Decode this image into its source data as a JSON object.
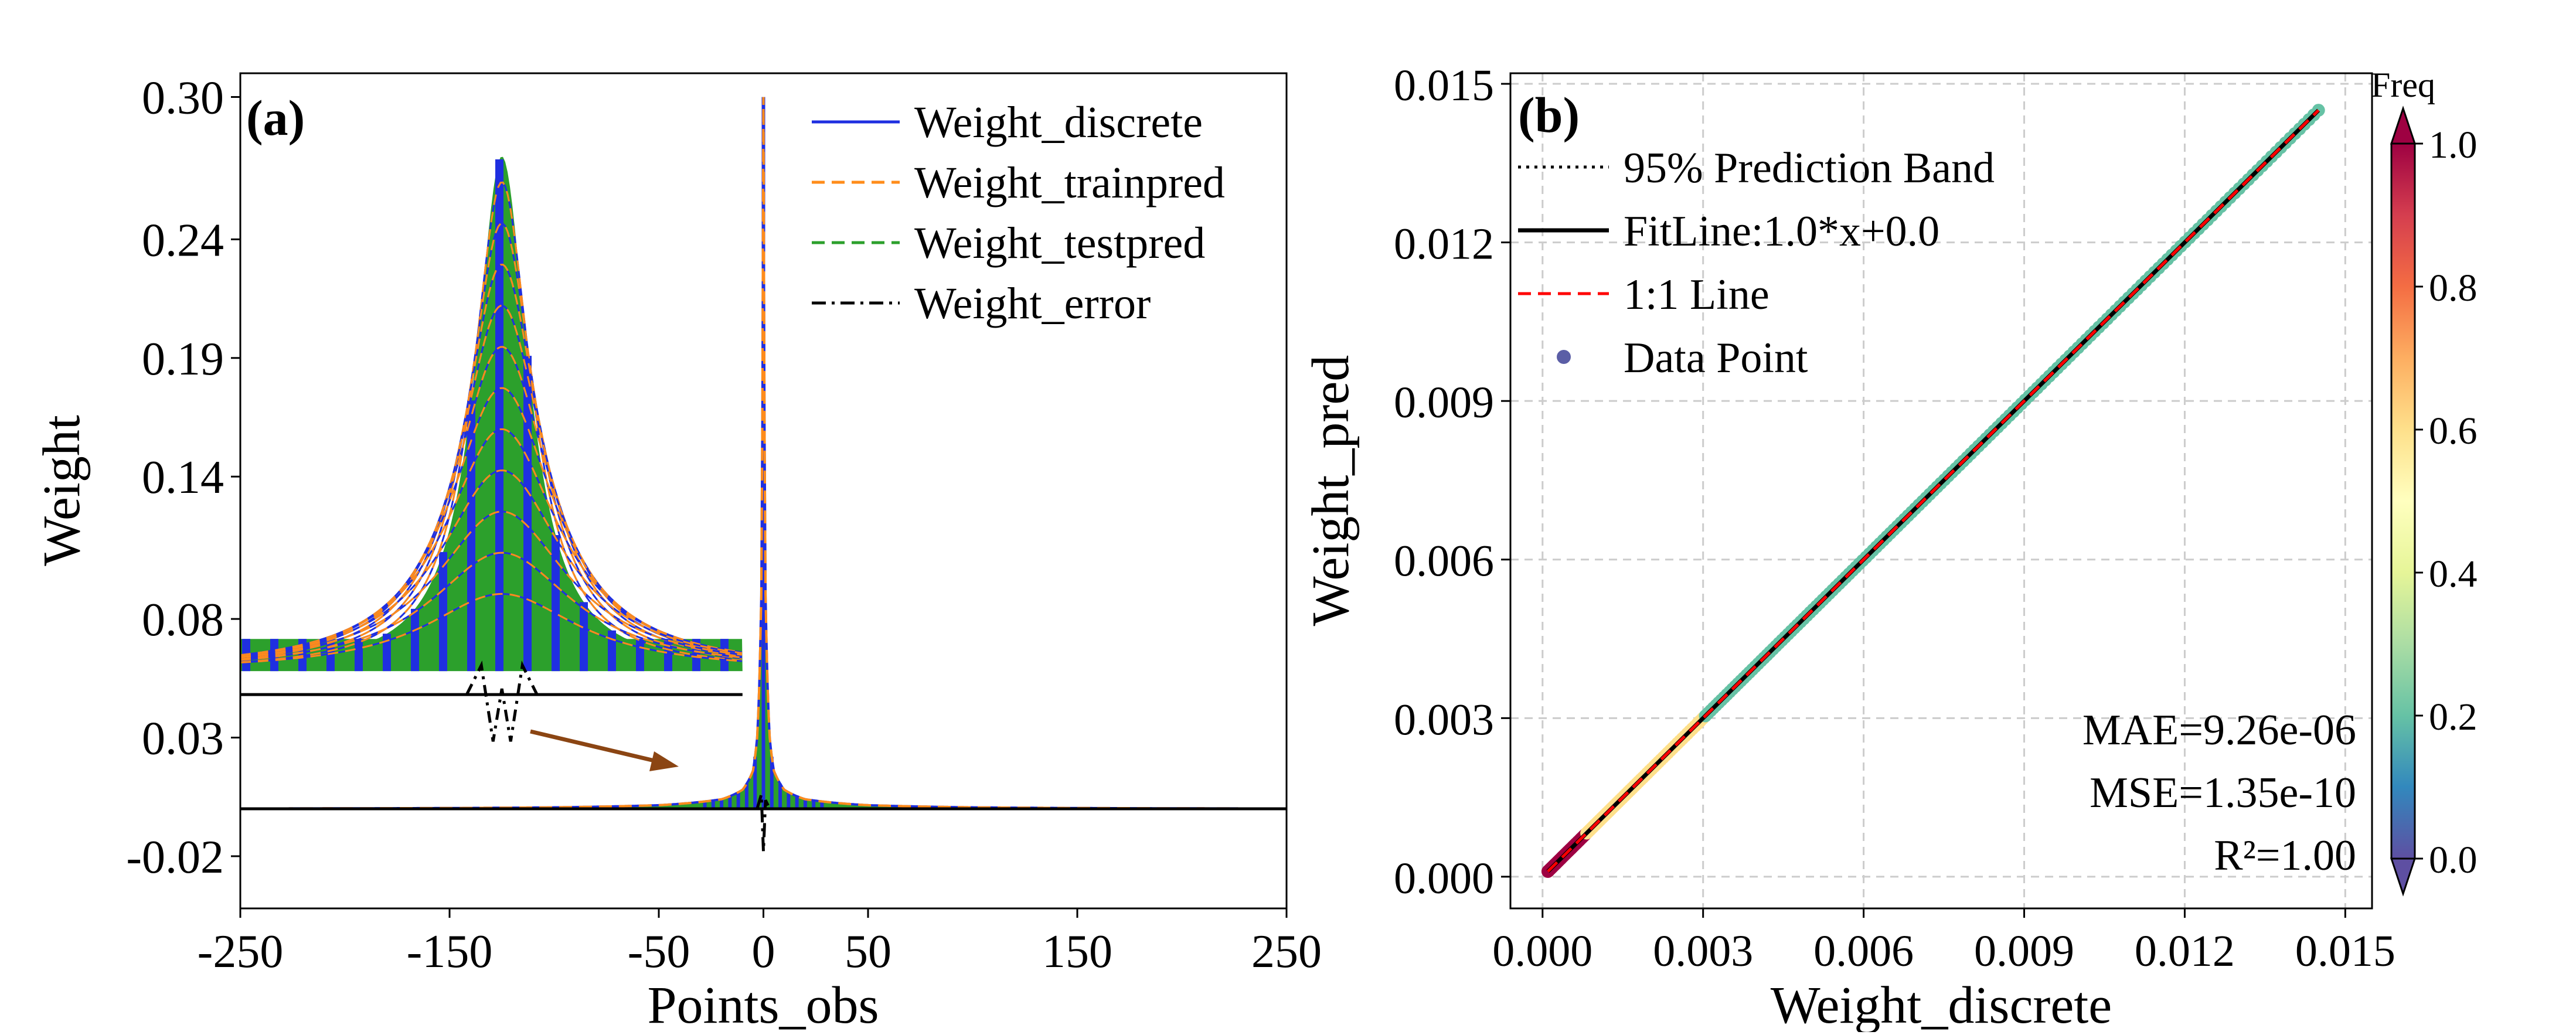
{
  "chart_data": [
    {
      "panel_label": "(a)",
      "type": "line",
      "xlabel": "Points_obs",
      "ylabel": "Weight",
      "xlim": [
        -250,
        250
      ],
      "ylim": [
        -0.042,
        0.31
      ],
      "x_ticks": [
        -250,
        -150,
        -50,
        0,
        50,
        150,
        250
      ],
      "x_tick_labels": [
        "-250",
        "-150",
        "-50",
        "0",
        "50",
        "150",
        "250"
      ],
      "y_ticks": [
        -0.02,
        0.03,
        0.08,
        0.14,
        0.19,
        0.24,
        0.3
      ],
      "y_tick_labels": [
        "-0.02",
        "0.03",
        "0.08",
        "0.14",
        "0.19",
        "0.24",
        "0.30"
      ],
      "grid": false,
      "legend_position": "top-right",
      "legend": [
        {
          "name": "Weight_discrete",
          "color": "#1f2fe0",
          "style": "solid"
        },
        {
          "name": "Weight_trainpred",
          "color": "#ff8c1a",
          "style": "dashed"
        },
        {
          "name": "Weight_testpred",
          "color": "#2ca02c",
          "style": "dashed"
        },
        {
          "name": "Weight_error",
          "color": "#000000",
          "style": "dashdot"
        }
      ],
      "main_series": {
        "x": [
          -250,
          -150,
          -100,
          -50,
          -20,
          -10,
          -5,
          -3,
          -1,
          0,
          1,
          3,
          5,
          10,
          20,
          50,
          100,
          150,
          250
        ],
        "weight": [
          0.0001,
          0.0003,
          0.0006,
          0.0015,
          0.004,
          0.008,
          0.016,
          0.03,
          0.09,
          0.3,
          0.09,
          0.03,
          0.016,
          0.008,
          0.004,
          0.0015,
          0.0006,
          0.0003,
          0.0001
        ],
        "error_spike": {
          "x": 0,
          "min": -0.018,
          "max": 0.006
        }
      },
      "inset": {
        "x_range": [
          -250,
          -10
        ],
        "edge_weight": 0.058,
        "peak_weight": 0.275,
        "peak_x": -125
      }
    },
    {
      "panel_label": "(b)",
      "type": "scatter",
      "xlabel": "Weight_discrete",
      "ylabel": "Weight_pred",
      "xlim": [
        -0.0006,
        0.0155
      ],
      "ylim": [
        -0.0006,
        0.0152
      ],
      "x_ticks": [
        0,
        0.003,
        0.006,
        0.009,
        0.012,
        0.015
      ],
      "x_tick_labels": [
        "0.000",
        "0.003",
        "0.006",
        "0.009",
        "0.012",
        "0.015"
      ],
      "y_ticks": [
        0,
        0.003,
        0.006,
        0.009,
        0.012,
        0.015
      ],
      "y_tick_labels": [
        "0.000",
        "0.003",
        "0.006",
        "0.009",
        "0.012",
        "0.015"
      ],
      "grid": true,
      "legend_position": "top-left",
      "legend": [
        {
          "name": "95% Prediction Band",
          "color": "#000000",
          "style": "dotted"
        },
        {
          "name": "FitLine:1.0*x+0.0",
          "color": "#000000",
          "style": "solid"
        },
        {
          "name": "1:1 Line",
          "color": "#ff0000",
          "style": "dashed"
        },
        {
          "name": "Data Point",
          "color": "#5b5ea6",
          "style": "marker"
        }
      ],
      "fit": {
        "slope": 1.0,
        "intercept": 0.0
      },
      "data_range": [
        0.0001,
        0.0145
      ],
      "stats": [
        "MAE=9.26e-06",
        "MSE=1.35e-10",
        "R²=1.00"
      ],
      "colorbar": {
        "title": "Freq",
        "range": [
          0.0,
          1.0
        ],
        "ticks": [
          0.0,
          0.2,
          0.4,
          0.6,
          0.8,
          1.0
        ],
        "tick_labels": [
          "0.0",
          "0.2",
          "0.4",
          "0.6",
          "0.8",
          "1.0"
        ],
        "colors": [
          "#5e4fa2",
          "#3288bd",
          "#66c2a5",
          "#abdda4",
          "#e6f598",
          "#ffffbf",
          "#fee08b",
          "#fdae61",
          "#f46d43",
          "#d53e4f",
          "#9e0142"
        ]
      }
    }
  ]
}
